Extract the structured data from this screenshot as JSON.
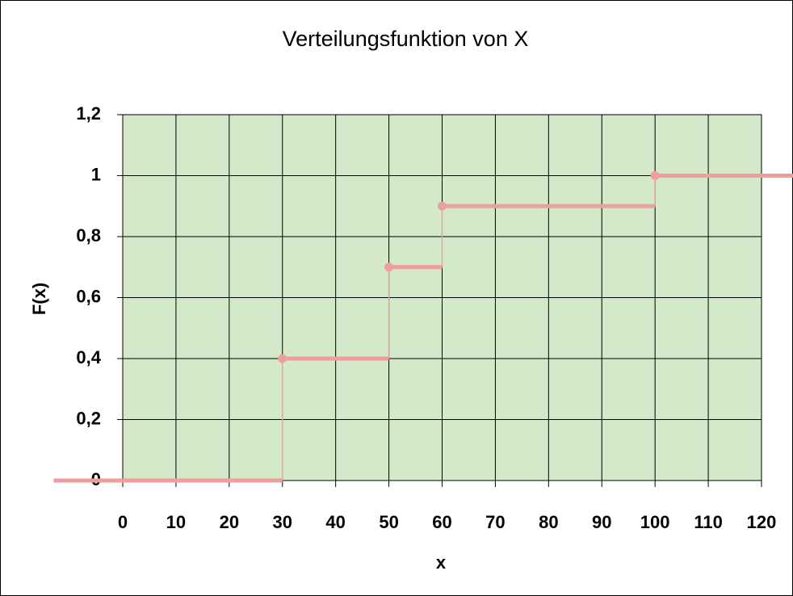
{
  "chart_data": {
    "type": "line",
    "drawstyle": "steps-post",
    "title": "Verteilungsfunktion von X",
    "xlabel": "x",
    "ylabel": "F(x)",
    "series": [
      {
        "color": "#ef9e9e",
        "x": [
          -13,
          30,
          50,
          60,
          100,
          126
        ],
        "values": [
          0,
          0.4,
          0.7,
          0.9,
          1,
          1
        ]
      }
    ],
    "xlim": [
      0,
      120
    ],
    "xticks": [
      0,
      10,
      20,
      30,
      40,
      50,
      60,
      70,
      80,
      90,
      100,
      110,
      120
    ],
    "ylim": [
      0,
      1.2
    ],
    "yticks": [
      0,
      {
        "value": 0.2,
        "label": "0,2"
      },
      {
        "value": 0.4,
        "label": "0,4"
      },
      {
        "value": 0.6,
        "label": "0,6"
      },
      {
        "value": 0.8,
        "label": "0,8"
      },
      1,
      {
        "value": 1.2,
        "label": "1,2"
      }
    ],
    "grid": true,
    "plot_background": "#d3e9c9"
  }
}
